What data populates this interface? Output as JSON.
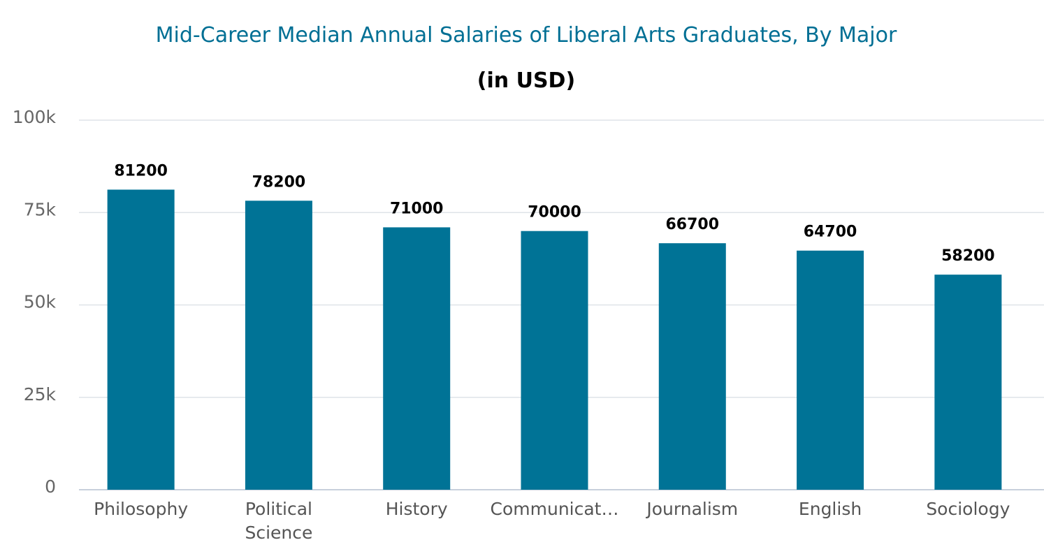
{
  "chart_data": {
    "type": "bar",
    "title": "Mid-Career Median Annual Salaries of Liberal Arts Graduates, By Major",
    "subtitle": "(in USD)",
    "categories": [
      "Philosophy",
      "Political Science",
      "History",
      "Communicat…",
      "Journalism",
      "English",
      "Sociology"
    ],
    "values": [
      81200,
      78200,
      71000,
      70000,
      66700,
      64700,
      58200
    ],
    "value_labels": [
      "81200",
      "78200",
      "71000",
      "70000",
      "66700",
      "64700",
      "58200"
    ],
    "xlabel": "",
    "ylabel": "",
    "ylim": [
      0,
      100000
    ],
    "y_ticks": [
      0,
      25000,
      50000,
      75000,
      100000
    ],
    "y_tick_labels": [
      "0",
      "25k",
      "50k",
      "75k",
      "100k"
    ],
    "grid": true,
    "legend": "none",
    "colors": {
      "bar": "#007396",
      "title": "#006f94",
      "grid": "#dfe3e8",
      "axis": "#c7d0dc"
    }
  }
}
